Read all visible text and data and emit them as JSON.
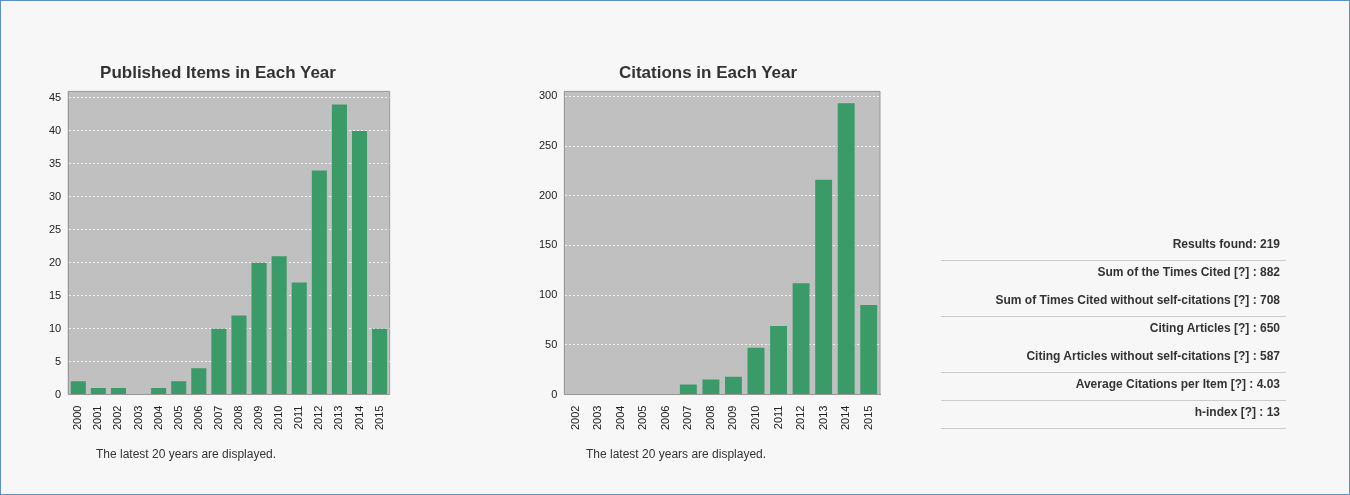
{
  "chart_data": [
    {
      "type": "bar",
      "title": "Published Items in Each Year",
      "categories": [
        "2000",
        "2001",
        "2002",
        "2003",
        "2004",
        "2005",
        "2006",
        "2007",
        "2008",
        "2009",
        "2010",
        "2011",
        "2012",
        "2013",
        "2014",
        "2015"
      ],
      "values": [
        2,
        1,
        1,
        0,
        1,
        2,
        4,
        10,
        12,
        20,
        21,
        17,
        34,
        44,
        40,
        10
      ],
      "color": "#3a9a68",
      "ylim": [
        0,
        46
      ],
      "yticks": [
        0,
        5,
        10,
        15,
        20,
        25,
        30,
        35,
        40,
        45
      ],
      "grid": "y",
      "legend": false,
      "annotations": [
        "The latest 20 years are displayed."
      ]
    },
    {
      "type": "bar",
      "title": "Citations in Each Year",
      "categories": [
        "2002",
        "2003",
        "2004",
        "2005",
        "2006",
        "2007",
        "2008",
        "2009",
        "2010",
        "2011",
        "2012",
        "2013",
        "2014",
        "2015"
      ],
      "values": [
        0,
        0,
        0,
        0,
        0,
        10,
        15,
        18,
        47,
        69,
        112,
        216,
        293,
        90
      ],
      "color": "#3a9a68",
      "ylim": [
        0,
        305
      ],
      "yticks": [
        0,
        50,
        100,
        150,
        200,
        250,
        300
      ],
      "grid": "y",
      "legend": false,
      "annotations": [
        "The latest 20 years are displayed."
      ]
    },
    {
      "type": "other",
      "annotations": [
        "Results found: 219",
        "Sum of the Times Cited [?] : 882",
        "Sum of Times Cited without self-citations [?] : 708",
        "Citing Articles [?] : 650",
        "Citing Articles without self-citations [?] : 587",
        "Average Citations per Item [?] : 4.03",
        "h-index [?] : 13"
      ]
    }
  ]
}
